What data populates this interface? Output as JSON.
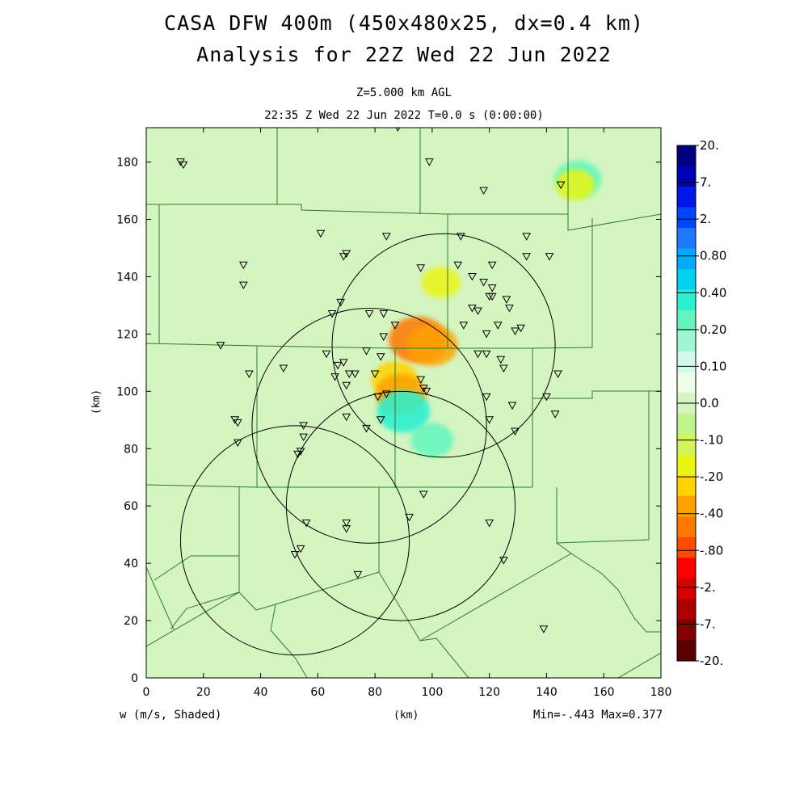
{
  "title": {
    "line1": "CASA DFW 400m (450x480x25, dx=0.4 km)",
    "line2": "Analysis for 22Z Wed 22 Jun 2022"
  },
  "subtitle": {
    "level": "Z=5.000 km AGL",
    "time": "22:35 Z Wed 22 Jun 2022   T=0.0 s (0:00:00)"
  },
  "footer": {
    "variable": "w (m/s, Shaded)",
    "xunit": "(km)",
    "minmax": "Min=-.443 Max=0.377"
  },
  "colors": {
    "background_field": "#d4f5c0",
    "boundary": "#2d7a2d"
  },
  "chart_data": {
    "type": "heatmap",
    "xlabel": "(km)",
    "ylabel": "(km)",
    "xlim": [
      0,
      180
    ],
    "ylim": [
      0,
      192
    ],
    "xticks": [
      0,
      20,
      40,
      60,
      80,
      100,
      120,
      140,
      160,
      180
    ],
    "yticks": [
      0,
      20,
      40,
      60,
      80,
      100,
      120,
      140,
      160,
      180
    ],
    "radar_rings": [
      {
        "center": [
          104,
          116
        ],
        "radius": 39
      },
      {
        "center": [
          78,
          88
        ],
        "radius": 41
      },
      {
        "center": [
          89,
          60
        ],
        "radius": 40
      },
      {
        "center": [
          52,
          48
        ],
        "radius": 40
      }
    ],
    "stations": [
      [
        88,
        192
      ],
      [
        12,
        180
      ],
      [
        13,
        179
      ],
      [
        99,
        180
      ],
      [
        118,
        170
      ],
      [
        145,
        172
      ],
      [
        61,
        155
      ],
      [
        84,
        154
      ],
      [
        110,
        154
      ],
      [
        133,
        154
      ],
      [
        34,
        144
      ],
      [
        70,
        148
      ],
      [
        69,
        147
      ],
      [
        96,
        143
      ],
      [
        109,
        144
      ],
      [
        121,
        144
      ],
      [
        133,
        147
      ],
      [
        141,
        147
      ],
      [
        34,
        137
      ],
      [
        114,
        140
      ],
      [
        118,
        138
      ],
      [
        121,
        136
      ],
      [
        120,
        133
      ],
      [
        121,
        133
      ],
      [
        68,
        131
      ],
      [
        65,
        127
      ],
      [
        78,
        127
      ],
      [
        83,
        127
      ],
      [
        114,
        129
      ],
      [
        116,
        128
      ],
      [
        126,
        132
      ],
      [
        127,
        129
      ],
      [
        83,
        119
      ],
      [
        87,
        123
      ],
      [
        111,
        123
      ],
      [
        123,
        123
      ],
      [
        119,
        120
      ],
      [
        129,
        121
      ],
      [
        131,
        122
      ],
      [
        26,
        116
      ],
      [
        63,
        113
      ],
      [
        77,
        114
      ],
      [
        82,
        112
      ],
      [
        116,
        113
      ],
      [
        119,
        113
      ],
      [
        124,
        111
      ],
      [
        125,
        108
      ],
      [
        36,
        106
      ],
      [
        48,
        108
      ],
      [
        67,
        109
      ],
      [
        69,
        110
      ],
      [
        66,
        105
      ],
      [
        71,
        106
      ],
      [
        73,
        106
      ],
      [
        80,
        106
      ],
      [
        96,
        104
      ],
      [
        97,
        101
      ],
      [
        98,
        100
      ],
      [
        70,
        102
      ],
      [
        119,
        98
      ],
      [
        140,
        98
      ],
      [
        144,
        106
      ],
      [
        81,
        98
      ],
      [
        84,
        99
      ],
      [
        128,
        95
      ],
      [
        31,
        90
      ],
      [
        32,
        89
      ],
      [
        70,
        91
      ],
      [
        82,
        90
      ],
      [
        120,
        90
      ],
      [
        143,
        92
      ],
      [
        55,
        88
      ],
      [
        55,
        84
      ],
      [
        77,
        87
      ],
      [
        129,
        86
      ],
      [
        32,
        82
      ],
      [
        54,
        79
      ],
      [
        53,
        78
      ],
      [
        97,
        64
      ],
      [
        56,
        54
      ],
      [
        70,
        54
      ],
      [
        70,
        52
      ],
      [
        92,
        56
      ],
      [
        120,
        54
      ],
      [
        52,
        43
      ],
      [
        54,
        45
      ],
      [
        125,
        41
      ],
      [
        74,
        36
      ],
      [
        139,
        17
      ]
    ],
    "colorbar": {
      "labels": [
        "20.",
        "7.",
        "2.",
        "0.80",
        "0.40",
        "0.20",
        "0.10",
        "0.0",
        "-.10",
        "-.20",
        "-.40",
        "-.80",
        "-2.",
        "-7.",
        "-20."
      ],
      "colors": [
        "#000080",
        "#0000b4",
        "#0018e8",
        "#0046ff",
        "#1e78ff",
        "#00aaff",
        "#00d2ee",
        "#28f0d2",
        "#64f5be",
        "#a0f5d2",
        "#d2faeb",
        "#ecfde8",
        "#d4f5c0",
        "#bef58c",
        "#d2f55a",
        "#eaf514",
        "#ffd200",
        "#ffa000",
        "#ff7800",
        "#ff4b00",
        "#ff0000",
        "#d70000",
        "#aa0000",
        "#820000",
        "#5a0000"
      ]
    },
    "features": [
      {
        "kind": "updraft",
        "center": [
          151,
          174
        ],
        "value": 0.3
      },
      {
        "kind": "downdraft",
        "center": [
          150,
          172
        ],
        "value": -0.2
      },
      {
        "kind": "downdraft",
        "center": [
          95,
          118
        ],
        "value": -0.44
      },
      {
        "kind": "downdraft",
        "center": [
          100,
          116
        ],
        "value": -0.35
      },
      {
        "kind": "downdraft",
        "center": [
          87,
          104
        ],
        "value": -0.3
      },
      {
        "kind": "downdraft",
        "center": [
          89,
          99
        ],
        "value": -0.35
      },
      {
        "kind": "updraft",
        "center": [
          90,
          93
        ],
        "value": 0.38
      },
      {
        "kind": "updraft",
        "center": [
          100,
          83
        ],
        "value": 0.25
      },
      {
        "kind": "downdraft",
        "center": [
          103,
          138
        ],
        "value": -0.2
      }
    ]
  }
}
